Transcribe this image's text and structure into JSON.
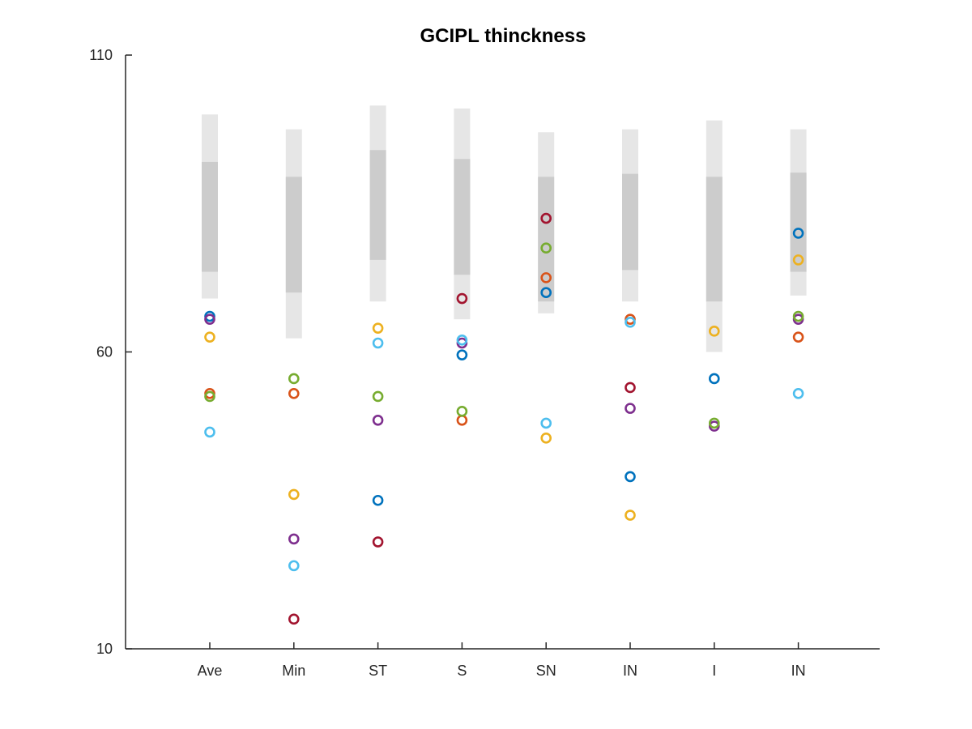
{
  "chart_data": {
    "type": "scatter",
    "title": "GCIPL thinckness",
    "xlabel": "",
    "ylabel": "",
    "categories": [
      "Ave",
      "Min",
      "ST",
      "S",
      "SN",
      "IN",
      "I",
      "IN"
    ],
    "ylim": [
      10,
      110
    ],
    "yticks": [
      10,
      60,
      110
    ],
    "grid": false,
    "legend": "none",
    "normative_bands": {
      "outer_color": "#e6e6e6",
      "inner_color": "#cccccc",
      "outer": [
        [
          100,
          69
        ],
        [
          97.5,
          62.3
        ],
        [
          101.5,
          68.5
        ],
        [
          101,
          65.5
        ],
        [
          97,
          66.5
        ],
        [
          97.5,
          68.5
        ],
        [
          99,
          60
        ],
        [
          97.5,
          69.5
        ]
      ],
      "inner": [
        [
          92,
          73.5
        ],
        [
          89.5,
          70
        ],
        [
          94,
          75.5
        ],
        [
          92.5,
          73
        ],
        [
          89.5,
          68.5
        ],
        [
          90,
          73.8
        ],
        [
          89.5,
          68.5
        ],
        [
          90.2,
          73.5
        ]
      ]
    },
    "series": [
      {
        "color": "#0072bd",
        "values": [
          66,
          null,
          35,
          59.5,
          70,
          39,
          55.5,
          80
        ]
      },
      {
        "color": "#d95319",
        "values": [
          53,
          53,
          null,
          48.5,
          72.5,
          65.5,
          null,
          62.5
        ]
      },
      {
        "color": "#edb120",
        "values": [
          62.5,
          36,
          64,
          null,
          45.5,
          32.5,
          63.5,
          75.5
        ]
      },
      {
        "color": "#7e2f8e",
        "values": [
          65.5,
          28.5,
          48.5,
          61.5,
          null,
          50.5,
          47.5,
          65.5
        ]
      },
      {
        "color": "#77ac30",
        "values": [
          52.5,
          55.5,
          52.5,
          50,
          77.5,
          null,
          48,
          66
        ]
      },
      {
        "color": "#4dbeee",
        "values": [
          46.5,
          24,
          61.5,
          62,
          48,
          65,
          null,
          53
        ]
      },
      {
        "color": "#a2142f",
        "values": [
          null,
          15,
          28,
          69,
          82.5,
          54,
          null,
          null
        ]
      }
    ]
  }
}
